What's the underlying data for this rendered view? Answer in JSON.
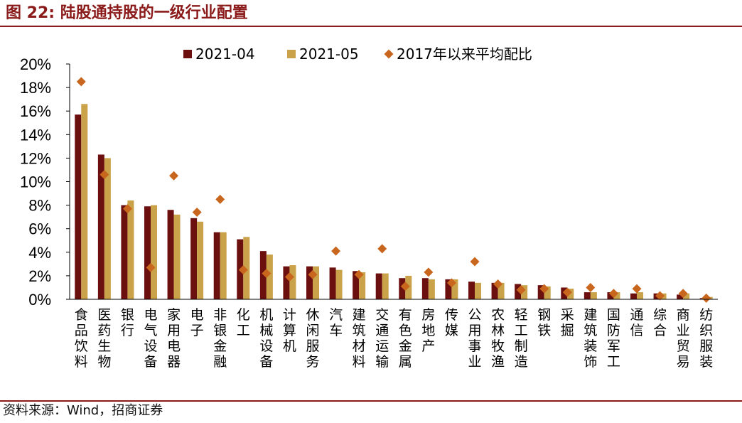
{
  "figure": {
    "title": "图 22:  陆股通持股的一级行业配置",
    "source": "资料来源：Wind，招商证券"
  },
  "colors": {
    "title": "#8b1a1a",
    "series_1": "#6b0f0f",
    "series_2": "#c9a24a",
    "marker": "#c9661e"
  },
  "chart_data": {
    "type": "bar",
    "title": "",
    "xlabel": "",
    "ylabel": "",
    "ylim": [
      0,
      20
    ],
    "yticks": [
      "0%",
      "2%",
      "4%",
      "6%",
      "8%",
      "10%",
      "12%",
      "14%",
      "16%",
      "18%",
      "20%"
    ],
    "grid": false,
    "legend_position": "top",
    "categories": [
      "食品饮料",
      "医药生物",
      "银行",
      "电气设备",
      "家用电器",
      "电子",
      "非银金融",
      "化工",
      "机械设备",
      "计算机",
      "休闲服务",
      "汽车",
      "建筑材料",
      "交通运输",
      "有色金属",
      "房地产",
      "传媒",
      "公用事业",
      "农林牧渔",
      "轻工制造",
      "钢铁",
      "采掘",
      "建筑装饰",
      "国防军工",
      "通信",
      "综合",
      "商业贸易",
      "纺织服装"
    ],
    "series": [
      {
        "name": "2021-04",
        "kind": "bar",
        "values": [
          15.7,
          12.3,
          8.0,
          7.9,
          7.6,
          6.9,
          5.7,
          5.1,
          4.1,
          2.8,
          2.8,
          2.7,
          2.4,
          2.2,
          1.8,
          1.8,
          1.7,
          1.5,
          1.4,
          1.3,
          1.2,
          1.0,
          0.6,
          0.6,
          0.5,
          0.5,
          0.4,
          0.1
        ]
      },
      {
        "name": "2021-05",
        "kind": "bar",
        "values": [
          16.6,
          12.0,
          8.4,
          8.0,
          7.2,
          6.6,
          5.7,
          5.3,
          3.8,
          2.9,
          2.8,
          2.5,
          2.3,
          2.2,
          2.0,
          1.7,
          1.7,
          1.4,
          1.4,
          1.2,
          1.1,
          0.9,
          0.6,
          0.6,
          0.6,
          0.5,
          0.5,
          0.2
        ]
      },
      {
        "name": "2017年以来平均配比",
        "kind": "marker",
        "values": [
          18.5,
          10.6,
          7.7,
          2.7,
          10.5,
          7.4,
          8.5,
          2.5,
          2.2,
          1.9,
          2.1,
          4.1,
          2.1,
          4.3,
          1.1,
          2.3,
          1.4,
          3.2,
          1.3,
          0.8,
          0.9,
          0.6,
          1.0,
          0.5,
          0.9,
          0.3,
          0.5,
          0.1
        ]
      }
    ]
  }
}
